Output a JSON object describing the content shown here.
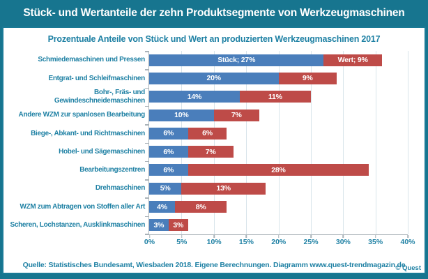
{
  "title": "Stück- und Wertanteile der zehn Produktsegmente von Werkzeugmaschinen",
  "subtitle": "Prozentuale Anteile von Stück und Wert an produzierten Werkzeugmaschinen 2017",
  "footer": {
    "source": "Quelle: Statistisches Bundesamt, Wiesbaden 2018. Eigene Berechnungen. Diagramm  www.quest-trendmagazin.de",
    "copyright": "© Quest"
  },
  "colors": {
    "teal_background": "#17758F",
    "teal_text": "#1F81A4",
    "stueck_blue": "#4A7EBB",
    "wert_red": "#BE4B48",
    "gridline": "#D8E4EA",
    "axis": "#A9B2B8"
  },
  "chart_data": {
    "type": "bar",
    "orientation": "horizontal-stacked",
    "title": "Stück- und Wertanteile der zehn Produktsegmente von Werkzeugmaschinen",
    "subtitle": "Prozentuale Anteile von Stück und Wert an produzierten Werkzeugmaschinen 2017",
    "categories": [
      "Schmiedemaschinen und Pressen",
      "Entgrat- und Schleifmaschinen",
      "Bohr-, Fräs- und Gewindeschneidemaschinen",
      "Andere WZM zur spanlosen Bearbeitung",
      "Biege-, Abkant- und Richtmaschinen",
      "Hobel- und Sägemaschinen",
      "Bearbeitungszentren",
      "Drehmaschinen",
      "WZM zum Abtragen von Stoffen aller Art",
      "Scheren, Lochstanzen, Ausklinkmaschinen"
    ],
    "series": [
      {
        "name": "Stück",
        "color_key": "stueck_blue",
        "values": [
          27,
          20,
          14,
          10,
          6,
          6,
          6,
          5,
          4,
          3
        ]
      },
      {
        "name": "Wert",
        "color_key": "wert_red",
        "values": [
          9,
          9,
          11,
          7,
          6,
          7,
          28,
          13,
          8,
          3
        ]
      }
    ],
    "bar_labels": [
      [
        "Stück; 27%",
        "Wert; 9%"
      ],
      [
        "20%",
        "9%"
      ],
      [
        "14%",
        "11%"
      ],
      [
        "10%",
        "7%"
      ],
      [
        "6%",
        "6%"
      ],
      [
        "6%",
        "7%"
      ],
      [
        "6%",
        "28%"
      ],
      [
        "5%",
        "13%"
      ],
      [
        "4%",
        "8%"
      ],
      [
        "3%",
        "3%"
      ]
    ],
    "x_ticks": [
      "0%",
      "5%",
      "10%",
      "15%",
      "20%",
      "25%",
      "30%",
      "35%",
      "40%"
    ],
    "xlim": [
      0,
      40
    ],
    "grid": true,
    "legend_position": "inline-first-bar"
  }
}
